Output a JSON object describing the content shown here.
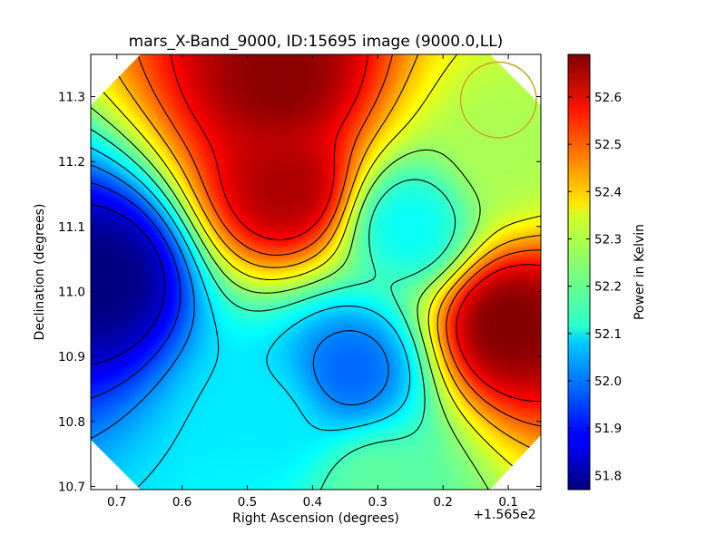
{
  "chart_data": {
    "type": "heatmap",
    "title": "mars_X-Band_9000, ID:15695 image (9000.0,LL)",
    "xlabel": "Right Ascension (degrees)",
    "ylabel": "Declination (degrees)",
    "x_offset_label": "+1.565e2",
    "xlim": [
      0.74,
      0.05
    ],
    "ylim": [
      10.695,
      11.365
    ],
    "x_ticks": [
      0.7,
      0.6,
      0.5,
      0.4,
      0.3,
      0.2,
      0.1
    ],
    "x_tick_labels": [
      "0.7",
      "0.6",
      "0.5",
      "0.4",
      "0.3",
      "0.2",
      "0.1"
    ],
    "y_ticks": [
      10.7,
      10.8,
      10.9,
      11.0,
      11.1,
      11.2,
      11.3
    ],
    "y_tick_labels": [
      "10.7",
      "10.8",
      "10.9",
      "11.0",
      "11.1",
      "11.2",
      "11.3"
    ],
    "colorbar": {
      "label": "Power in Kelvin",
      "range": [
        51.77,
        52.69
      ],
      "ticks": [
        51.8,
        51.9,
        52.0,
        52.1,
        52.2,
        52.3,
        52.4,
        52.5,
        52.6
      ],
      "tick_labels": [
        "51.8",
        "51.9",
        "52.0",
        "52.1",
        "52.2",
        "52.3",
        "52.4",
        "52.5",
        "52.6"
      ],
      "colormap": "jet"
    },
    "contour_levels": [
      51.85,
      51.93,
      52.01,
      52.09,
      52.17,
      52.25,
      52.33,
      52.41,
      52.49,
      52.57
    ],
    "field_features": [
      {
        "ra": 0.72,
        "dec": 11.02,
        "value": 51.77,
        "kind": "minimum"
      },
      {
        "ra": 0.45,
        "dec": 11.33,
        "value": 52.68,
        "kind": "maximum"
      },
      {
        "ra": 0.44,
        "dec": 11.16,
        "value": 52.65,
        "kind": "maximum"
      },
      {
        "ra": 0.1,
        "dec": 10.95,
        "value": 52.69,
        "kind": "maximum"
      },
      {
        "ra": 0.34,
        "dec": 10.88,
        "value": 51.98,
        "kind": "minimum"
      },
      {
        "ra": 0.25,
        "dec": 11.1,
        "value": 52.12,
        "kind": "minimum"
      },
      {
        "ra": 0.47,
        "dec": 10.8,
        "value": 52.1,
        "kind": "minimum"
      },
      {
        "ra": 0.3,
        "dec": 10.7,
        "value": 52.2,
        "kind": "plateau"
      },
      {
        "ra": 0.1,
        "dec": 11.22,
        "value": 52.27,
        "kind": "plateau"
      }
    ],
    "circle_marker": {
      "ra": 0.115,
      "dec": 11.295,
      "radius_deg": 0.058,
      "color": "#c9a824"
    },
    "grid": false,
    "legend": "none"
  }
}
